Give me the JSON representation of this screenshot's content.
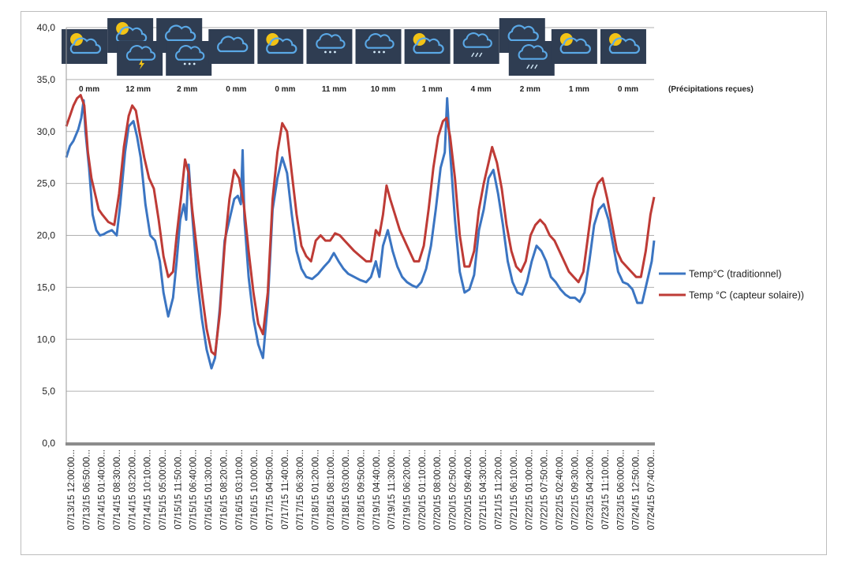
{
  "chart_data": {
    "type": "line",
    "title": "",
    "xlabel": "",
    "ylabel": "",
    "ylim": [
      0,
      40
    ],
    "yticks": [
      "0,0",
      "5,0",
      "10,0",
      "15,0",
      "20,0",
      "25,0",
      "30,0",
      "35,0",
      "40,0"
    ],
    "grid": "horizontal",
    "legend_position": "right",
    "categories": [
      "07/13/15 12:00:00...",
      "07/13/15 06:50:00...",
      "07/14/15 01:40:00...",
      "07/14/15 08:30:00...",
      "07/14/15 03:20:00...",
      "07/14/15 10:10:00...",
      "07/15/15 05:00:00...",
      "07/15/15 11:50:00...",
      "07/15/15 06:40:00...",
      "07/16/15 01:30:00...",
      "07/16/15 08:20:00...",
      "07/16/15 03:10:00...",
      "07/16/15 10:00:00...",
      "07/17/15 04:50:00...",
      "07/17/15 11:40:00...",
      "07/17/15 06:30:00...",
      "07/18/15 01:20:00...",
      "07/18/15 08:10:00...",
      "07/18/15 03:00:00...",
      "07/18/15 09:50:00...",
      "07/19/15 04:40:00...",
      "07/19/15 11:30:00...",
      "07/19/15 06:20:00...",
      "07/20/15 01:10:00...",
      "07/20/15 08:00:00...",
      "07/20/15 02:50:00...",
      "07/20/15 09:40:00...",
      "07/21/15 04:30:00...",
      "07/21/15 11:20:00...",
      "07/21/15 06:10:00...",
      "07/22/15 01:00:00...",
      "07/22/15 07:50:00...",
      "07/22/15 02:40:00...",
      "07/22/15 09:30:00...",
      "07/23/15 04:20:00...",
      "07/23/15 11:10:00...",
      "07/23/15 06:00:00...",
      "07/24/15 12:50:00...",
      "07/24/15 07:40:00..."
    ],
    "series": [
      {
        "name": "Temp°C (traditionnel)",
        "color": "#3b75c2",
        "points": [
          [
            0,
            27.5
          ],
          [
            0.3,
            28.6
          ],
          [
            0.6,
            29.1
          ],
          [
            1,
            30.2
          ],
          [
            1.25,
            31.3
          ],
          [
            1.45,
            33.0
          ],
          [
            1.6,
            30.0
          ],
          [
            1.9,
            26.5
          ],
          [
            2.2,
            22.0
          ],
          [
            2.5,
            20.5
          ],
          [
            2.8,
            20.0
          ],
          [
            3.1,
            20.1
          ],
          [
            3.4,
            20.3
          ],
          [
            3.8,
            20.5
          ],
          [
            4.2,
            20.0
          ],
          [
            4.5,
            23.0
          ],
          [
            4.9,
            28.0
          ],
          [
            5.2,
            30.5
          ],
          [
            5.6,
            31.0
          ],
          [
            5.9,
            29.5
          ],
          [
            6.2,
            27.5
          ],
          [
            6.6,
            23.0
          ],
          [
            7.0,
            20.0
          ],
          [
            7.4,
            19.5
          ],
          [
            7.8,
            17.5
          ],
          [
            8.1,
            14.5
          ],
          [
            8.5,
            12.2
          ],
          [
            8.9,
            14.0
          ],
          [
            9.2,
            17.5
          ],
          [
            9.5,
            21.5
          ],
          [
            9.8,
            23.0
          ],
          [
            10.0,
            21.5
          ],
          [
            10.2,
            26.8
          ],
          [
            10.5,
            22.0
          ],
          [
            10.9,
            16.0
          ],
          [
            11.3,
            12.0
          ],
          [
            11.7,
            9.0
          ],
          [
            12.1,
            7.2
          ],
          [
            12.4,
            8.2
          ],
          [
            12.8,
            13.0
          ],
          [
            13.2,
            19.5
          ],
          [
            13.6,
            21.5
          ],
          [
            14.0,
            23.5
          ],
          [
            14.3,
            23.8
          ],
          [
            14.55,
            23.0
          ],
          [
            14.7,
            28.2
          ],
          [
            14.85,
            21.5
          ],
          [
            15.2,
            16.0
          ],
          [
            15.6,
            12.0
          ],
          [
            16.0,
            9.5
          ],
          [
            16.4,
            8.2
          ],
          [
            16.8,
            13.5
          ],
          [
            17.2,
            22.5
          ],
          [
            17.6,
            25.5
          ],
          [
            18.0,
            27.5
          ],
          [
            18.4,
            26.0
          ],
          [
            18.8,
            22.0
          ],
          [
            19.2,
            18.5
          ],
          [
            19.6,
            16.8
          ],
          [
            20.0,
            16.0
          ],
          [
            20.5,
            15.8
          ],
          [
            21.0,
            16.3
          ],
          [
            21.5,
            17.0
          ],
          [
            21.9,
            17.5
          ],
          [
            22.3,
            18.3
          ],
          [
            22.7,
            17.5
          ],
          [
            23.1,
            16.8
          ],
          [
            23.5,
            16.3
          ],
          [
            24.0,
            16.0
          ],
          [
            24.5,
            15.7
          ],
          [
            25.0,
            15.5
          ],
          [
            25.4,
            16.0
          ],
          [
            25.8,
            17.5
          ],
          [
            26.1,
            16.0
          ],
          [
            26.4,
            19.0
          ],
          [
            26.8,
            20.5
          ],
          [
            27.2,
            18.5
          ],
          [
            27.6,
            17.0
          ],
          [
            28.0,
            16.0
          ],
          [
            28.4,
            15.5
          ],
          [
            28.8,
            15.2
          ],
          [
            29.2,
            15.0
          ],
          [
            29.6,
            15.5
          ],
          [
            30.0,
            16.8
          ],
          [
            30.4,
            19.0
          ],
          [
            30.8,
            22.5
          ],
          [
            31.2,
            26.5
          ],
          [
            31.55,
            28.0
          ],
          [
            31.75,
            33.2
          ],
          [
            32.0,
            28.0
          ],
          [
            32.4,
            21.5
          ],
          [
            32.8,
            16.5
          ],
          [
            33.2,
            14.5
          ],
          [
            33.6,
            14.8
          ],
          [
            34.0,
            16.2
          ],
          [
            34.4,
            20.5
          ],
          [
            34.8,
            22.5
          ],
          [
            35.2,
            25.5
          ],
          [
            35.6,
            26.3
          ],
          [
            36.0,
            24.0
          ],
          [
            36.4,
            21.0
          ],
          [
            36.8,
            17.5
          ],
          [
            37.2,
            15.5
          ],
          [
            37.6,
            14.5
          ],
          [
            38.0,
            14.3
          ],
          [
            38.4,
            15.5
          ],
          [
            38.8,
            17.5
          ],
          [
            39.2,
            19.0
          ],
          [
            39.6,
            18.5
          ],
          [
            40.0,
            17.5
          ],
          [
            40.4,
            16.0
          ],
          [
            40.8,
            15.5
          ],
          [
            41.2,
            14.8
          ],
          [
            41.6,
            14.3
          ],
          [
            42.0,
            14.0
          ],
          [
            42.4,
            14.0
          ],
          [
            42.8,
            13.6
          ],
          [
            43.2,
            14.5
          ],
          [
            43.6,
            17.5
          ],
          [
            44.0,
            21.0
          ],
          [
            44.4,
            22.5
          ],
          [
            44.8,
            23.0
          ],
          [
            45.2,
            21.5
          ],
          [
            45.6,
            19.0
          ],
          [
            46.0,
            16.5
          ],
          [
            46.4,
            15.5
          ],
          [
            46.8,
            15.3
          ],
          [
            47.2,
            14.8
          ],
          [
            47.6,
            13.5
          ],
          [
            48.0,
            13.5
          ],
          [
            48.4,
            15.5
          ],
          [
            48.8,
            17.5
          ],
          [
            49.0,
            19.5
          ]
        ]
      },
      {
        "name": "Temp °C (capteur solaire))",
        "color": "#be3b36",
        "points": [
          [
            0,
            30.5
          ],
          [
            0.3,
            31.5
          ],
          [
            0.6,
            32.5
          ],
          [
            0.9,
            33.2
          ],
          [
            1.2,
            33.5
          ],
          [
            1.5,
            32.5
          ],
          [
            1.8,
            28.0
          ],
          [
            2.1,
            25.5
          ],
          [
            2.4,
            24.0
          ],
          [
            2.7,
            22.5
          ],
          [
            3.0,
            22.0
          ],
          [
            3.5,
            21.3
          ],
          [
            4.0,
            21.0
          ],
          [
            4.4,
            24.0
          ],
          [
            4.8,
            28.5
          ],
          [
            5.2,
            31.5
          ],
          [
            5.5,
            32.5
          ],
          [
            5.8,
            32.0
          ],
          [
            6.1,
            30.0
          ],
          [
            6.5,
            27.5
          ],
          [
            6.9,
            25.5
          ],
          [
            7.3,
            24.5
          ],
          [
            7.7,
            21.5
          ],
          [
            8.1,
            18.0
          ],
          [
            8.5,
            16.0
          ],
          [
            8.9,
            16.5
          ],
          [
            9.2,
            20.0
          ],
          [
            9.6,
            24.0
          ],
          [
            9.9,
            27.3
          ],
          [
            10.2,
            26.0
          ],
          [
            10.5,
            22.5
          ],
          [
            10.9,
            18.5
          ],
          [
            11.3,
            14.5
          ],
          [
            11.7,
            11.0
          ],
          [
            12.1,
            8.8
          ],
          [
            12.4,
            8.5
          ],
          [
            12.8,
            12.5
          ],
          [
            13.2,
            19.0
          ],
          [
            13.6,
            23.5
          ],
          [
            14.0,
            26.3
          ],
          [
            14.4,
            25.5
          ],
          [
            14.8,
            23.0
          ],
          [
            15.2,
            18.5
          ],
          [
            15.6,
            14.5
          ],
          [
            16.0,
            11.5
          ],
          [
            16.4,
            10.5
          ],
          [
            16.8,
            14.5
          ],
          [
            17.2,
            23.5
          ],
          [
            17.6,
            28.0
          ],
          [
            18.0,
            30.8
          ],
          [
            18.4,
            30.0
          ],
          [
            18.8,
            26.0
          ],
          [
            19.2,
            22.0
          ],
          [
            19.6,
            19.0
          ],
          [
            20.0,
            18.0
          ],
          [
            20.4,
            17.5
          ],
          [
            20.8,
            19.5
          ],
          [
            21.2,
            20.0
          ],
          [
            21.6,
            19.5
          ],
          [
            22.0,
            19.5
          ],
          [
            22.4,
            20.2
          ],
          [
            22.8,
            20.0
          ],
          [
            23.2,
            19.5
          ],
          [
            23.6,
            19.0
          ],
          [
            24.0,
            18.5
          ],
          [
            24.5,
            18.0
          ],
          [
            25.0,
            17.5
          ],
          [
            25.4,
            17.5
          ],
          [
            25.8,
            20.5
          ],
          [
            26.1,
            20.0
          ],
          [
            26.4,
            22.0
          ],
          [
            26.7,
            24.8
          ],
          [
            27.0,
            23.5
          ],
          [
            27.4,
            22.0
          ],
          [
            27.8,
            20.5
          ],
          [
            28.2,
            19.5
          ],
          [
            28.6,
            18.5
          ],
          [
            29.0,
            17.5
          ],
          [
            29.4,
            17.5
          ],
          [
            29.8,
            19.0
          ],
          [
            30.2,
            22.5
          ],
          [
            30.6,
            26.5
          ],
          [
            31.0,
            29.5
          ],
          [
            31.4,
            31.0
          ],
          [
            31.7,
            31.3
          ],
          [
            32.0,
            29.5
          ],
          [
            32.4,
            25.5
          ],
          [
            32.8,
            20.0
          ],
          [
            33.2,
            17.0
          ],
          [
            33.6,
            17.0
          ],
          [
            34.0,
            18.5
          ],
          [
            34.4,
            22.5
          ],
          [
            34.8,
            25.0
          ],
          [
            35.2,
            27.0
          ],
          [
            35.5,
            28.5
          ],
          [
            35.9,
            27.0
          ],
          [
            36.3,
            24.5
          ],
          [
            36.7,
            21.0
          ],
          [
            37.1,
            18.5
          ],
          [
            37.5,
            17.0
          ],
          [
            37.9,
            16.5
          ],
          [
            38.3,
            17.5
          ],
          [
            38.7,
            20.0
          ],
          [
            39.1,
            21.0
          ],
          [
            39.5,
            21.5
          ],
          [
            39.9,
            21.0
          ],
          [
            40.3,
            20.0
          ],
          [
            40.7,
            19.5
          ],
          [
            41.1,
            18.5
          ],
          [
            41.5,
            17.5
          ],
          [
            41.9,
            16.5
          ],
          [
            42.3,
            16.0
          ],
          [
            42.7,
            15.5
          ],
          [
            43.1,
            16.5
          ],
          [
            43.5,
            20.0
          ],
          [
            43.9,
            23.5
          ],
          [
            44.3,
            25.0
          ],
          [
            44.7,
            25.5
          ],
          [
            45.1,
            23.5
          ],
          [
            45.5,
            21.0
          ],
          [
            45.9,
            18.5
          ],
          [
            46.3,
            17.5
          ],
          [
            46.7,
            17.0
          ],
          [
            47.1,
            16.5
          ],
          [
            47.5,
            16.0
          ],
          [
            47.9,
            16.0
          ],
          [
            48.3,
            18.5
          ],
          [
            48.7,
            22.0
          ],
          [
            49.0,
            23.7
          ]
        ]
      }
    ],
    "precipitation": {
      "values": [
        "0 mm",
        "12 mm",
        "2 mm",
        "0 mm",
        "0 mm",
        "11 mm",
        "10 mm",
        "1 mm",
        "4 mm",
        "2 mm",
        "1 mm",
        "0 mm"
      ],
      "note": "(Précipitations reçues)"
    },
    "weather_icons": [
      [
        "partly-cloudy-icon"
      ],
      [
        "partly-cloudy-icon",
        "thunderstorm-icon"
      ],
      [
        "cloud-icon",
        "rain-icon"
      ],
      [
        "cloud-icon"
      ],
      [
        "partly-cloudy-icon"
      ],
      [
        "rain-icon"
      ],
      [
        "rain-icon"
      ],
      [
        "partly-cloudy-icon"
      ],
      [
        "drizzle-icon"
      ],
      [
        "cloud-icon",
        "drizzle-icon"
      ],
      [
        "partly-cloudy-icon"
      ],
      [
        "partly-cloudy-icon"
      ]
    ]
  }
}
